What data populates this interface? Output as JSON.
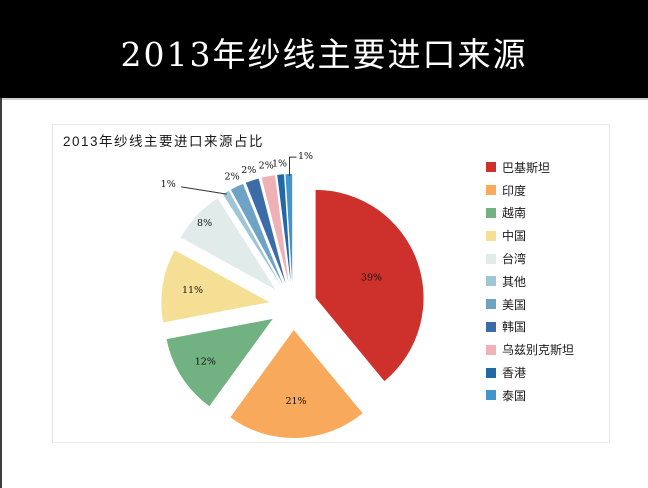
{
  "header": {
    "title": "2013年纱线主要进口来源",
    "background": "#000000",
    "text_color": "#ffffff"
  },
  "panel": {
    "title": "2013年纱线主要进口来源占比",
    "border_color": "#e9e9e9"
  },
  "chart_data": {
    "type": "pie",
    "title": "2013年纱线主要进口来源占比",
    "exploded": true,
    "start_angle_deg": 0,
    "direction": "clockwise",
    "legend_position": "right",
    "unit": "%",
    "categories": [
      "巴基斯坦",
      "印度",
      "越南",
      "中国",
      "台湾",
      "其他",
      "美国",
      "韩国",
      "乌兹别克斯坦",
      "香港",
      "泰国"
    ],
    "values": [
      39,
      21,
      12,
      11,
      8,
      1,
      2,
      2,
      2,
      1,
      1
    ],
    "labels": [
      "39%",
      "21%",
      "12%",
      "11%",
      "8%",
      "1%",
      "2%",
      "2%",
      "2%",
      "1%",
      "1%"
    ],
    "colors": [
      "#ce312b",
      "#f9a95c",
      "#72b181",
      "#f5df94",
      "#e0ebea",
      "#9fc6d6",
      "#6ea3c6",
      "#3b6ca8",
      "#efb0b6",
      "#2268a4",
      "#4295cb"
    ]
  }
}
